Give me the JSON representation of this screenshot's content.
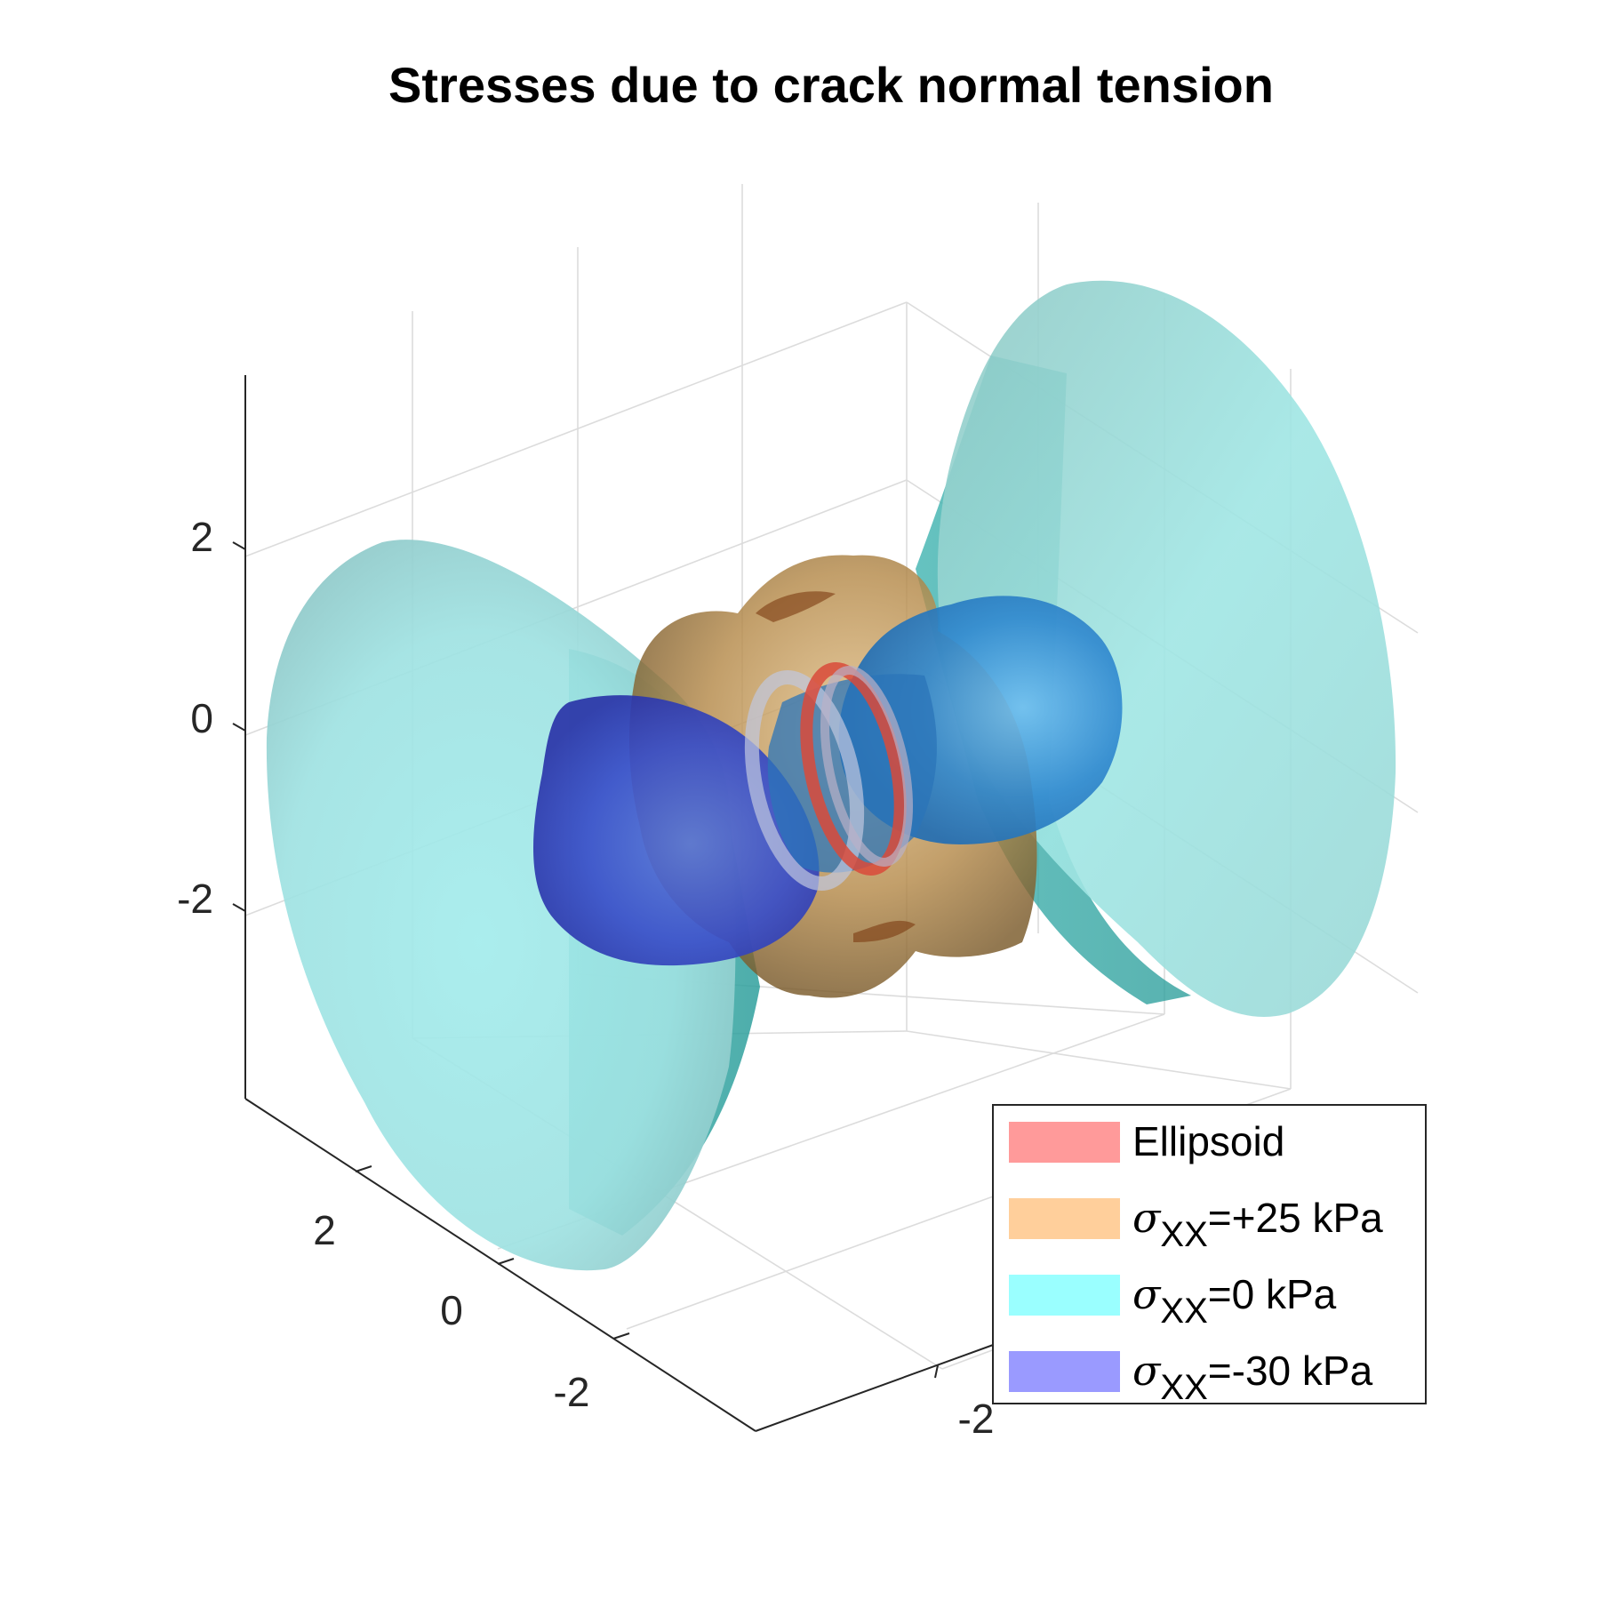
{
  "chart_data": {
    "type": "surface3d",
    "title": "Stresses due to crack normal tension",
    "xlabel": "",
    "ylabel": "",
    "zlabel": "",
    "grid": true,
    "legend_position": "bottom-right",
    "z_ticks": [
      "2",
      "0",
      "-2"
    ],
    "y_ticks": [
      "2",
      "0",
      "-2"
    ],
    "x_ticks": [
      "-2"
    ],
    "series": [
      {
        "name": "Ellipsoid",
        "symbol": "",
        "subscript": "",
        "suffix": "Ellipsoid",
        "color": "#ff9a9a",
        "value_kpa": null
      },
      {
        "name": "σxx=+25 kPa",
        "symbol": "σ",
        "subscript": "XX",
        "suffix": "=+25 kPa",
        "color": "#ffcf9b",
        "value_kpa": 25
      },
      {
        "name": "σxx=0 kPa",
        "symbol": "σ",
        "subscript": "XX",
        "suffix": "=0 kPa",
        "color": "#9affff",
        "value_kpa": 0
      },
      {
        "name": "σxx=-30 kPa",
        "symbol": "σ",
        "subscript": "XX",
        "suffix": "=-30 kPa",
        "color": "#9a9aff",
        "value_kpa": -30
      }
    ]
  }
}
